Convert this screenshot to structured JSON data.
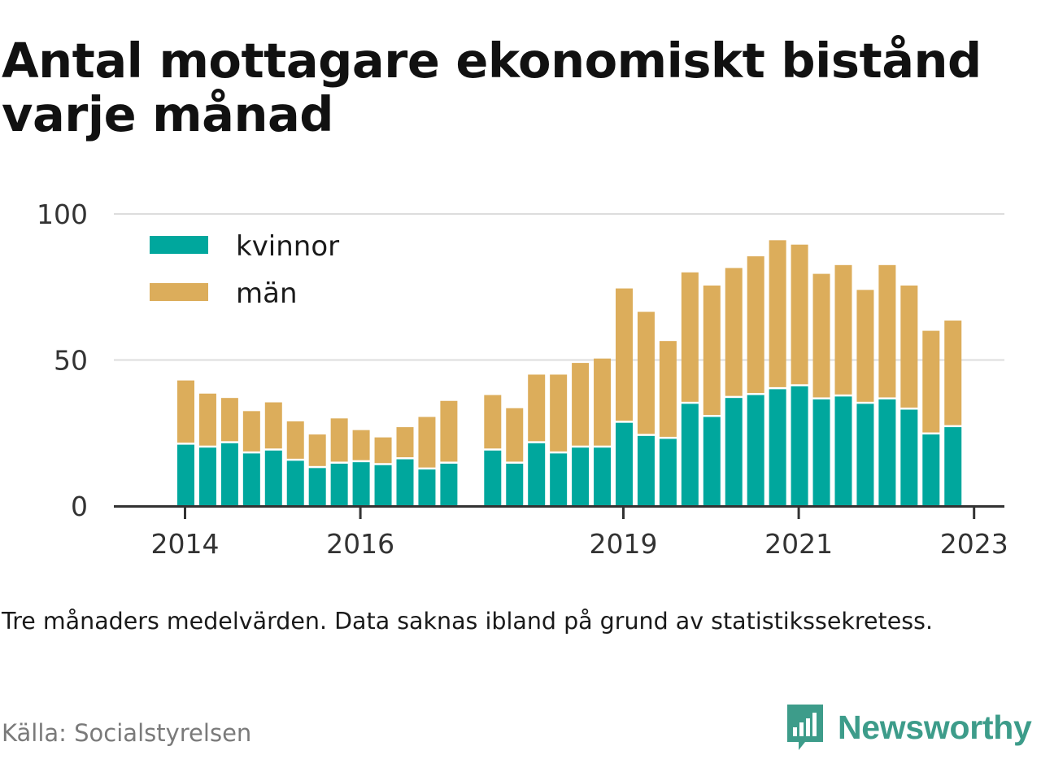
{
  "title": "Antal mottagare ekonomiskt bistånd varje månad",
  "note": "Tre månaders medelvärden. Data saknas ibland på grund av statistikssekretess.",
  "source": "Källa: Socialstyrelsen",
  "brand": {
    "name": "Newsworthy",
    "color": "#3d9c8a",
    "icon": "newsworthy-logo-icon"
  },
  "colors": {
    "kvinnor": "#00a79d",
    "man": "#dcad5b",
    "grid": "#dddddd",
    "axis": "#333333"
  },
  "chart_data": {
    "type": "bar",
    "stacked": true,
    "x_ticks": [
      {
        "label": "2014",
        "pos": 0.5
      },
      {
        "label": "2016",
        "pos": 8.5
      },
      {
        "label": "2019",
        "pos": 20.5
      },
      {
        "label": "2021",
        "pos": 28.5
      },
      {
        "label": "2023",
        "pos": 36.5
      }
    ],
    "y_ticks": [
      0,
      50,
      100
    ],
    "ylim": [
      0,
      100
    ],
    "grid": true,
    "legend_position": "top-left",
    "series": [
      {
        "name": "kvinnor",
        "values": [
          21,
          20,
          21.5,
          18,
          19,
          15.5,
          13,
          14.5,
          15,
          14,
          16,
          12.5,
          14.5,
          null,
          19,
          14.5,
          21.5,
          18,
          20,
          20,
          28.5,
          24,
          23,
          35,
          30.5,
          37,
          38,
          40,
          41,
          36.5,
          37.5,
          35,
          36.5,
          33,
          24.5,
          27
        ]
      },
      {
        "name": "män",
        "values": [
          22,
          18.5,
          15.5,
          14.5,
          16.5,
          13.5,
          11.5,
          15.5,
          11,
          9.5,
          11,
          18,
          21.5,
          null,
          19,
          19,
          23.5,
          27,
          29,
          30.5,
          46,
          42.5,
          33.5,
          45,
          45,
          44.5,
          47.5,
          51,
          48.5,
          43,
          45,
          39,
          46,
          42.5,
          35.5,
          36.5
        ]
      }
    ]
  }
}
